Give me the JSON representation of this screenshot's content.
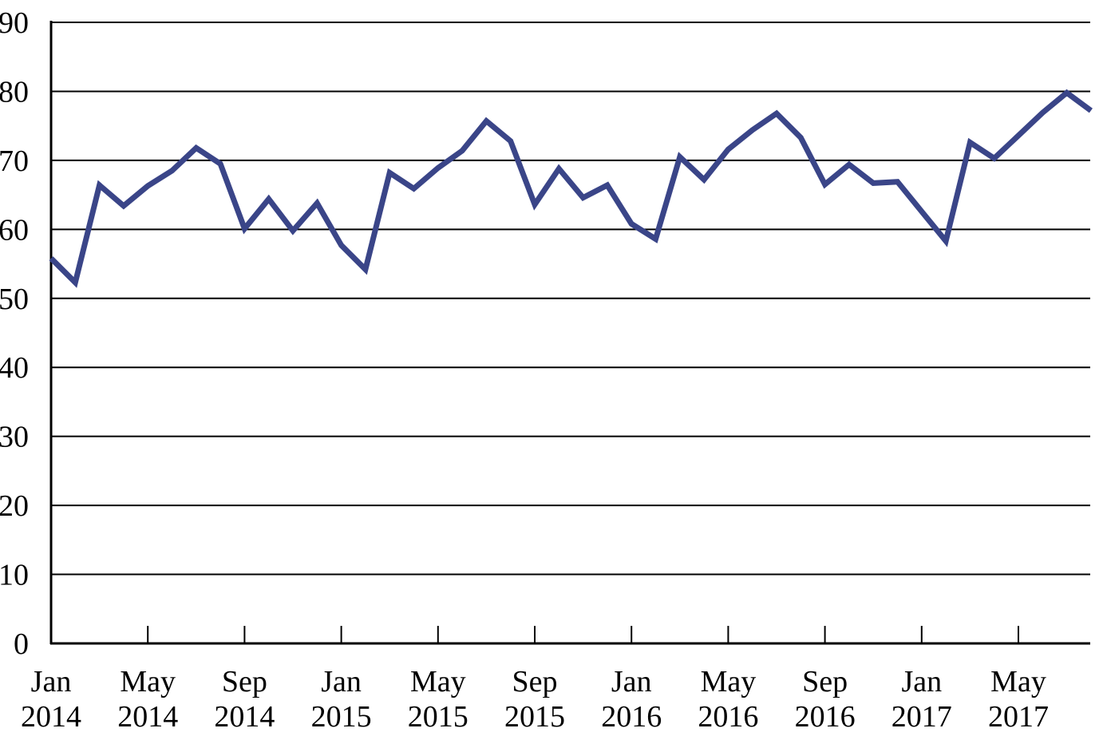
{
  "chart_data": {
    "type": "line",
    "title": "",
    "xlabel": "",
    "ylabel": "",
    "ylim": [
      0,
      90
    ],
    "y_ticks": [
      0,
      10,
      20,
      30,
      40,
      50,
      60,
      70,
      80,
      90
    ],
    "grid": true,
    "legend": "none",
    "x_tick_labels": [
      {
        "index": 0,
        "month": "Jan",
        "year": "2014"
      },
      {
        "index": 4,
        "month": "May",
        "year": "2014"
      },
      {
        "index": 8,
        "month": "Sep",
        "year": "2014"
      },
      {
        "index": 12,
        "month": "Jan",
        "year": "2015"
      },
      {
        "index": 16,
        "month": "May",
        "year": "2015"
      },
      {
        "index": 20,
        "month": "Sep",
        "year": "2015"
      },
      {
        "index": 24,
        "month": "Jan",
        "year": "2016"
      },
      {
        "index": 28,
        "month": "May",
        "year": "2016"
      },
      {
        "index": 32,
        "month": "Sep",
        "year": "2016"
      },
      {
        "index": 36,
        "month": "Jan",
        "year": "2017"
      },
      {
        "index": 40,
        "month": "May",
        "year": "2017"
      }
    ],
    "x": [
      "Jan 2014",
      "Feb 2014",
      "Mar 2014",
      "Apr 2014",
      "May 2014",
      "Jun 2014",
      "Jul 2014",
      "Aug 2014",
      "Sep 2014",
      "Oct 2014",
      "Nov 2014",
      "Dec 2014",
      "Jan 2015",
      "Feb 2015",
      "Mar 2015",
      "Apr 2015",
      "May 2015",
      "Jun 2015",
      "Jul 2015",
      "Aug 2015",
      "Sep 2015",
      "Oct 2015",
      "Nov 2015",
      "Dec 2015",
      "Jan 2016",
      "Feb 2016",
      "Mar 2016",
      "Apr 2016",
      "May 2016",
      "Jun 2016",
      "Jul 2016",
      "Aug 2016",
      "Sep 2016",
      "Oct 2016",
      "Nov 2016",
      "Dec 2016",
      "Jan 2017",
      "Feb 2017",
      "Mar 2017",
      "Apr 2017",
      "May 2017",
      "Jun 2017",
      "Jul 2017",
      "Aug 2017"
    ],
    "series": [
      {
        "color": "#3a4588",
        "values": [
          55.8,
          52.3,
          66.4,
          63.4,
          66.3,
          68.5,
          71.8,
          69.5,
          60.1,
          64.4,
          59.8,
          63.8,
          57.7,
          54.2,
          68.2,
          65.9,
          68.9,
          71.4,
          75.7,
          72.8,
          63.6,
          68.8,
          64.6,
          66.4,
          60.8,
          58.6,
          70.5,
          67.2,
          71.6,
          74.4,
          76.8,
          73.3,
          66.5,
          69.4,
          66.7,
          66.9,
          62.6,
          58.3,
          72.6,
          70.3,
          73.6,
          76.9,
          79.8,
          77.2
        ]
      }
    ]
  }
}
